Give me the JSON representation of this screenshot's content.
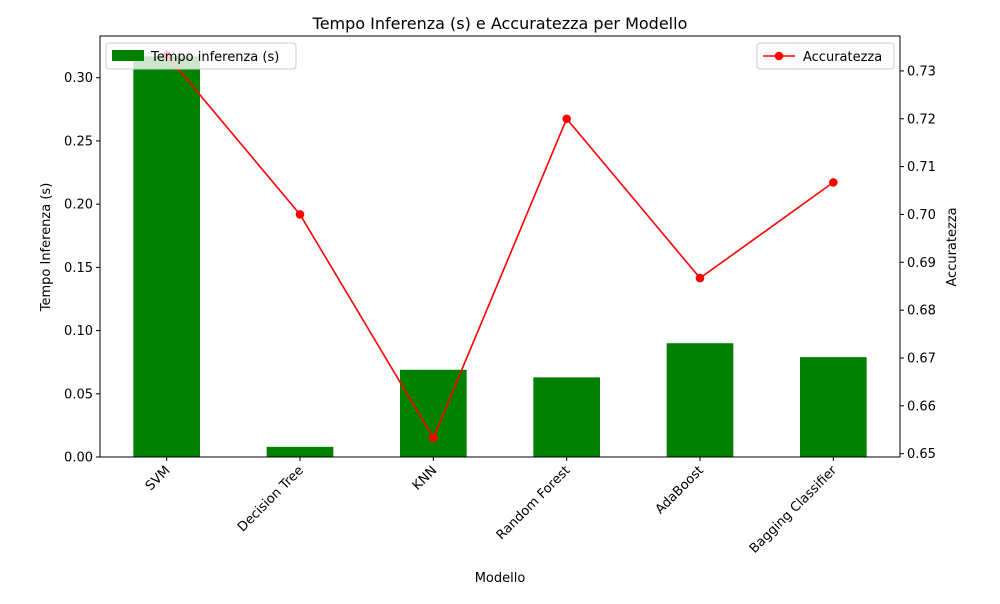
{
  "chart_data": {
    "type": "bar+line",
    "title": "Tempo Inferenza (s) e Accuratezza per Modello",
    "xlabel": "Modello",
    "ylabel_left": "Tempo Inferenza (s)",
    "ylabel_right": "Accuratezza",
    "categories": [
      "SVM",
      "Decision Tree",
      "KNN",
      "Random Forest",
      "AdaBoost",
      "Bagging Classifier"
    ],
    "series": [
      {
        "name": "Tempo inferenza (s)",
        "kind": "bar",
        "axis": "left",
        "color": "#008000",
        "values": [
          0.317,
          0.008,
          0.069,
          0.063,
          0.09,
          0.079
        ]
      },
      {
        "name": "Accuratezza",
        "kind": "line",
        "axis": "right",
        "color": "#ff0000",
        "values": [
          0.7333,
          0.7,
          0.6533,
          0.72,
          0.6867,
          0.7067
        ]
      }
    ],
    "ylim_left": [
      0,
      0.333
    ],
    "ylim_right": [
      0.6493,
      0.7373
    ],
    "yticks_left": [
      "0.00",
      "0.05",
      "0.10",
      "0.15",
      "0.20",
      "0.25",
      "0.30"
    ],
    "yticks_right": [
      "0.65",
      "0.66",
      "0.67",
      "0.68",
      "0.69",
      "0.70",
      "0.71",
      "0.72",
      "0.73"
    ],
    "legend_left_placement": "top-left",
    "legend_right_placement": "top-right",
    "grid": false
  }
}
